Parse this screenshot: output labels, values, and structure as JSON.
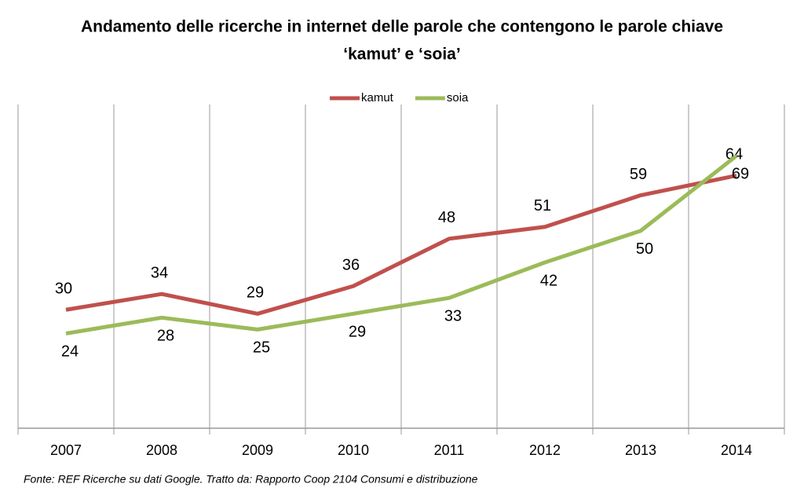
{
  "chart_data": {
    "type": "line",
    "title": [
      "Andamento delle ricerche in internet delle parole che contengono le parole chiave",
      "‘kamut’ e ‘soia’"
    ],
    "categories": [
      "2007",
      "2008",
      "2009",
      "2010",
      "2011",
      "2012",
      "2013",
      "2014"
    ],
    "series": [
      {
        "name": "kamut",
        "color": "#c0504d",
        "values": [
          30,
          34,
          29,
          36,
          48,
          51,
          59,
          64
        ]
      },
      {
        "name": "soia",
        "color": "#9bbb59",
        "values": [
          24,
          28,
          25,
          29,
          33,
          42,
          50,
          69
        ]
      }
    ],
    "ylim": [
      0,
      82
    ],
    "grid": true,
    "legend": "top",
    "source": "Fonte: REF Ricerche su dati Google. Tratto da: Rapporto Coop 2104 Consumi e distribuzione"
  }
}
